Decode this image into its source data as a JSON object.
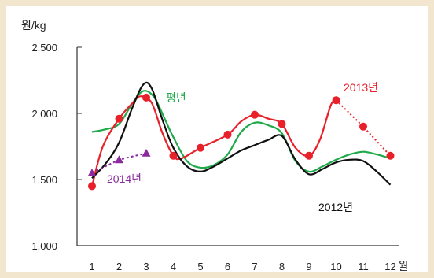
{
  "chart_data": {
    "type": "line",
    "y_unit": "원/kg",
    "x_unit": "월",
    "categories": [
      "1",
      "2",
      "3",
      "4",
      "5",
      "6",
      "7",
      "8",
      "9",
      "10",
      "11",
      "12"
    ],
    "y_ticks": [
      "2,500",
      "2,000",
      "1,500",
      "1,000"
    ],
    "ylim": [
      1000,
      2500
    ],
    "grid": false,
    "series": [
      {
        "name": "평년",
        "color": "#1faa4a",
        "marker": "none",
        "points": [
          [
            1,
            1860
          ],
          [
            1.5,
            1880
          ],
          [
            2,
            1920
          ],
          [
            2.5,
            2080
          ],
          [
            2.9,
            2170
          ],
          [
            3.3,
            2120
          ],
          [
            3.7,
            1950
          ],
          [
            4,
            1820
          ],
          [
            4.5,
            1640
          ],
          [
            5,
            1590
          ],
          [
            5.5,
            1610
          ],
          [
            6,
            1690
          ],
          [
            6.5,
            1860
          ],
          [
            7,
            1930
          ],
          [
            7.5,
            1910
          ],
          [
            8,
            1850
          ],
          [
            8.5,
            1640
          ],
          [
            9,
            1560
          ],
          [
            9.5,
            1600
          ],
          [
            10,
            1650
          ],
          [
            10.5,
            1690
          ],
          [
            11,
            1710
          ],
          [
            11.5,
            1690
          ],
          [
            12,
            1660
          ]
        ]
      },
      {
        "name": "2013년",
        "color": "#e8202a",
        "marker": "circle",
        "points": [
          [
            1,
            1450
          ],
          [
            1.4,
            1750
          ],
          [
            2,
            1960
          ],
          [
            2.5,
            2080
          ],
          [
            2.8,
            2130
          ],
          [
            3.2,
            2080
          ],
          [
            3.6,
            1850
          ],
          [
            4,
            1680
          ],
          [
            4.3,
            1660
          ],
          [
            5,
            1740
          ],
          [
            6,
            1840
          ],
          [
            6.5,
            1940
          ],
          [
            7,
            1990
          ],
          [
            7.5,
            1960
          ],
          [
            8,
            1920
          ],
          [
            8.5,
            1740
          ],
          [
            9,
            1680
          ],
          [
            9.4,
            1800
          ],
          [
            9.8,
            2060
          ],
          [
            10,
            2100
          ]
        ],
        "projected_points": [
          [
            10,
            2100
          ],
          [
            11,
            1900
          ],
          [
            12,
            1680
          ]
        ],
        "markers": [
          [
            1,
            1450
          ],
          [
            2,
            1960
          ],
          [
            3,
            2120
          ],
          [
            4,
            1680
          ],
          [
            5,
            1740
          ],
          [
            6,
            1840
          ],
          [
            7,
            1990
          ],
          [
            8,
            1920
          ],
          [
            9,
            1680
          ],
          [
            10,
            2100
          ],
          [
            11,
            1900
          ],
          [
            12,
            1680
          ]
        ]
      },
      {
        "name": "2012년",
        "color": "#111111",
        "marker": "none",
        "points": [
          [
            1,
            1510
          ],
          [
            1.5,
            1620
          ],
          [
            2,
            1780
          ],
          [
            2.5,
            2050
          ],
          [
            2.9,
            2220
          ],
          [
            3.2,
            2190
          ],
          [
            3.6,
            1950
          ],
          [
            4,
            1740
          ],
          [
            4.5,
            1600
          ],
          [
            5,
            1560
          ],
          [
            5.5,
            1600
          ],
          [
            6,
            1660
          ],
          [
            6.5,
            1720
          ],
          [
            7,
            1760
          ],
          [
            7.5,
            1800
          ],
          [
            8,
            1830
          ],
          [
            8.5,
            1650
          ],
          [
            9,
            1540
          ],
          [
            9.5,
            1580
          ],
          [
            10,
            1630
          ],
          [
            10.5,
            1650
          ],
          [
            11,
            1640
          ],
          [
            11.5,
            1560
          ],
          [
            12,
            1460
          ]
        ]
      },
      {
        "name": "2014년",
        "color": "#8a2a9c",
        "marker": "triangle",
        "line_style": "dotted",
        "points": [
          [
            1,
            1550
          ],
          [
            2,
            1650
          ],
          [
            3,
            1700
          ]
        ],
        "markers": [
          [
            1,
            1550
          ],
          [
            2,
            1650
          ],
          [
            3,
            1700
          ]
        ]
      }
    ]
  }
}
